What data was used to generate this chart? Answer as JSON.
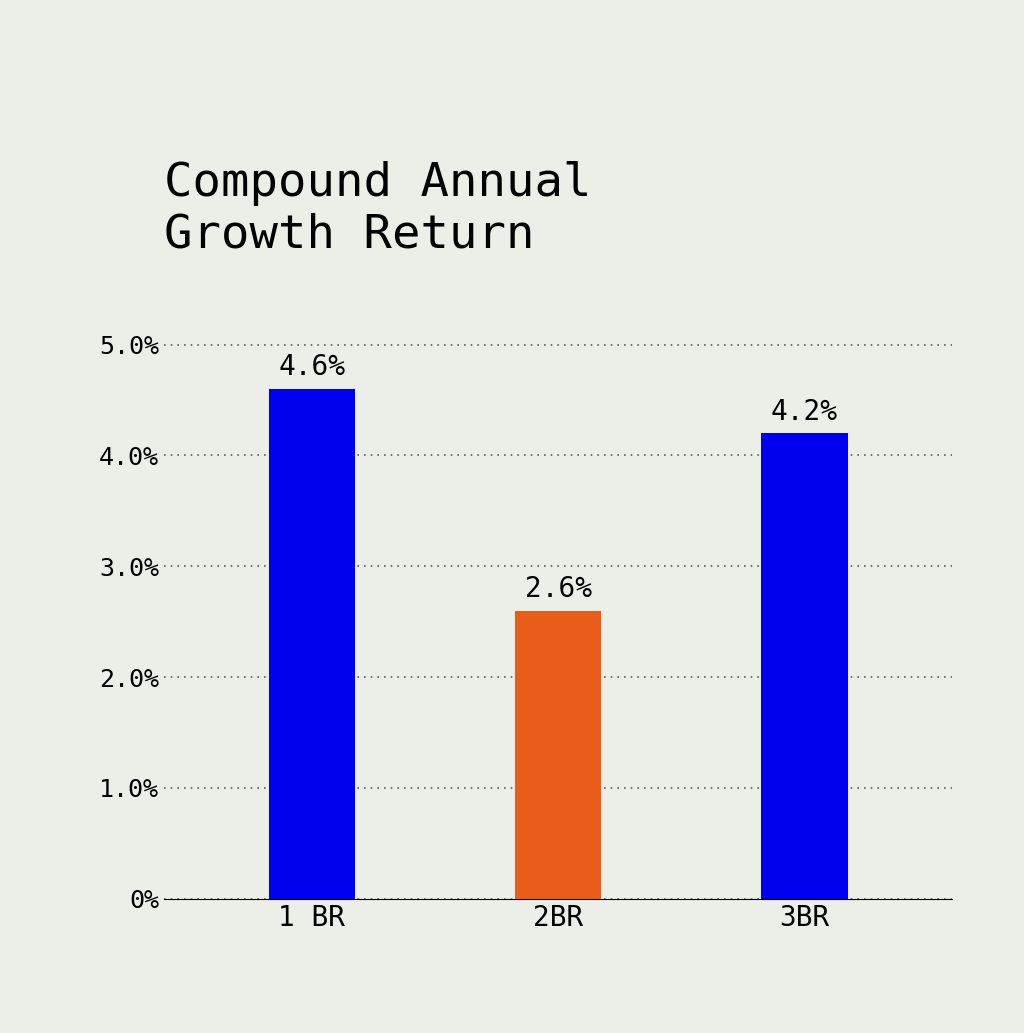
{
  "title": "Compound Annual\nGrowth Return",
  "categories": [
    "1 BR",
    "2BR",
    "3BR"
  ],
  "values": [
    4.6,
    2.6,
    4.2
  ],
  "bar_colors": [
    "#0000ee",
    "#e85d1a",
    "#0000ee"
  ],
  "background_color": "#eceee8",
  "plot_bg_color": "#eceee8",
  "ylim": [
    0,
    5.5
  ],
  "yticks": [
    0,
    1.0,
    2.0,
    3.0,
    4.0,
    5.0
  ],
  "ytick_labels": [
    "0%",
    "1.0%",
    "2.0%",
    "3.0%",
    "4.0%",
    "5.0%"
  ],
  "title_fontsize": 34,
  "tick_fontsize": 18,
  "label_fontsize": 20,
  "annotation_fontsize": 20,
  "bar_width": 0.35
}
